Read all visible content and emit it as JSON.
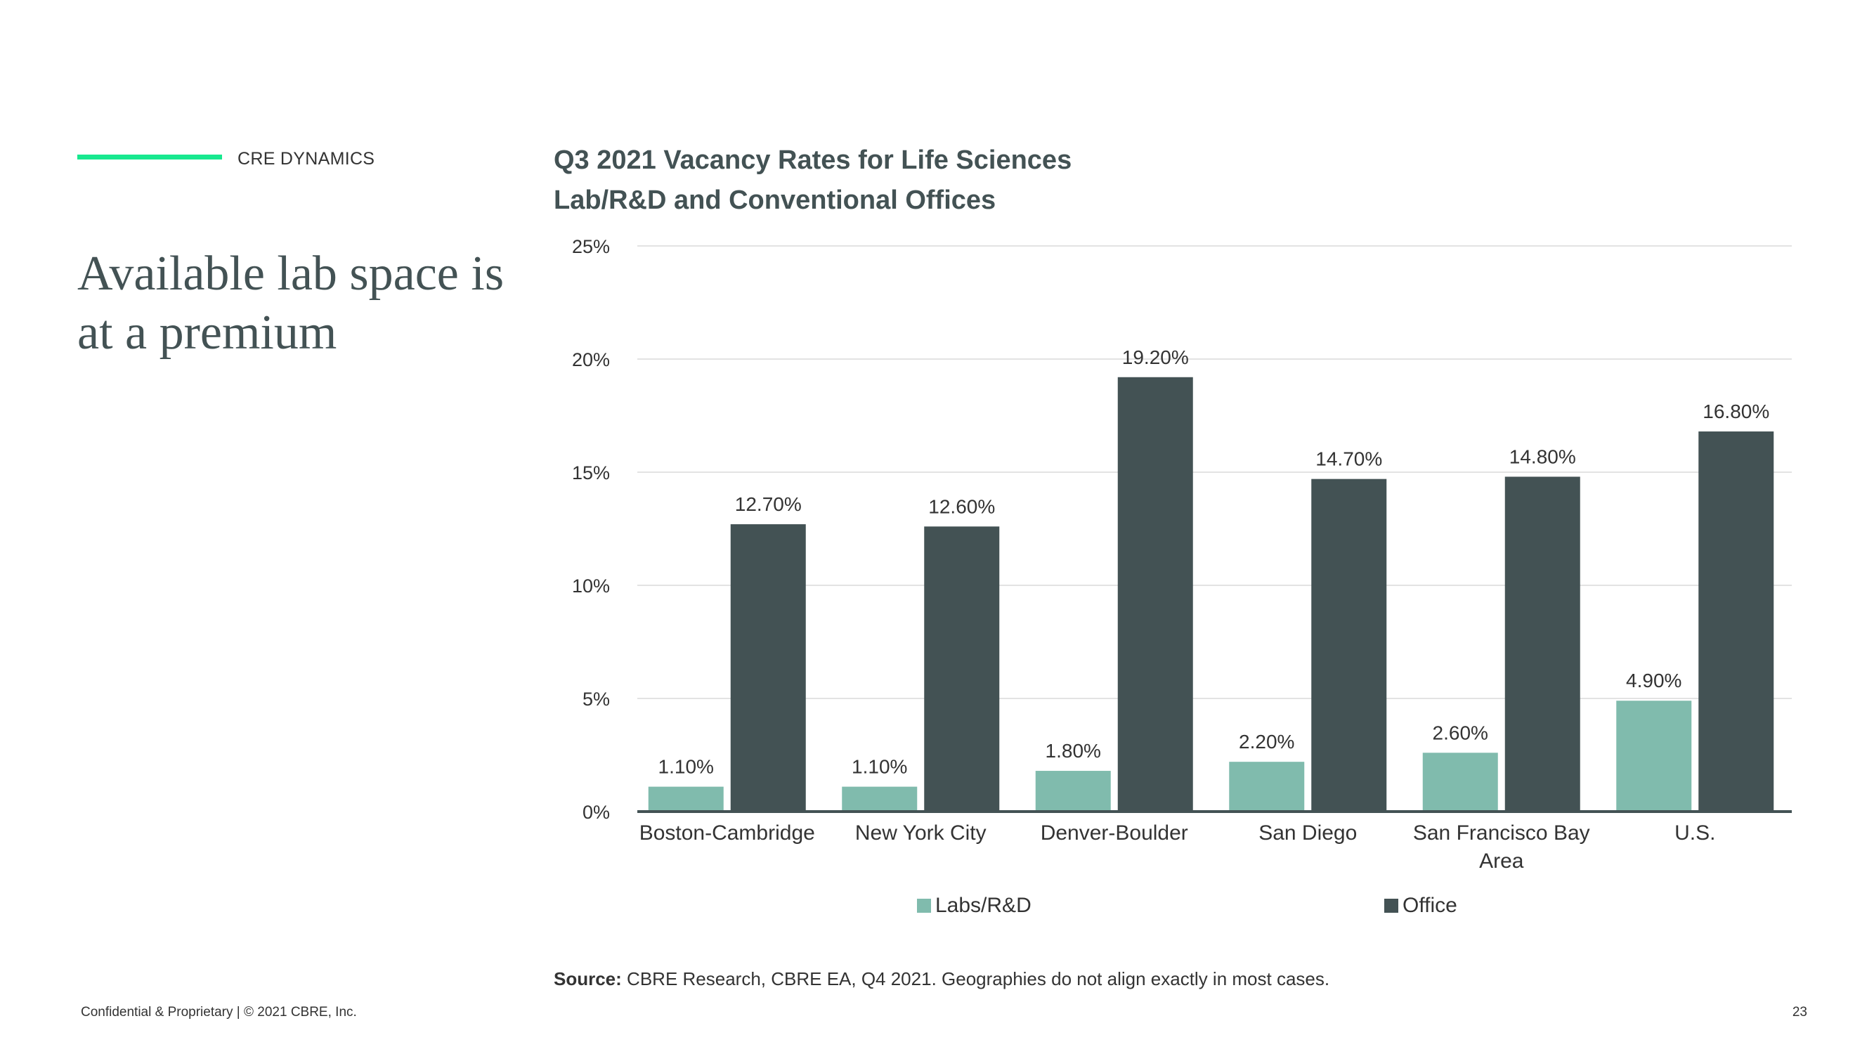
{
  "header": {
    "section_label": "CRE DYNAMICS",
    "title": "Available lab space is at a premium"
  },
  "colors": {
    "accent": "#17E88F",
    "labs": "#80BBAD",
    "office": "#435254",
    "grid": "#E3E3E3",
    "axis": "#435254"
  },
  "chart_data": {
    "type": "bar",
    "title": "Q3 2021 Vacancy Rates for Life Sciences",
    "subtitle": "Lab/R&D and Conventional Offices",
    "categories": [
      "Boston-Cambridge",
      "New York City",
      "Denver-Boulder",
      "San Diego",
      "San Francisco Bay Area",
      "U.S."
    ],
    "category_lines": [
      [
        "Boston-Cambridge"
      ],
      [
        "New York City"
      ],
      [
        "Denver-Boulder"
      ],
      [
        "San Diego"
      ],
      [
        "San Francisco Bay",
        "Area"
      ],
      [
        "U.S."
      ]
    ],
    "series": [
      {
        "name": "Labs/R&D",
        "values": [
          1.1,
          1.1,
          1.8,
          2.2,
          2.6,
          4.9
        ],
        "labels": [
          "1.10%",
          "1.10%",
          "1.80%",
          "2.20%",
          "2.60%",
          "4.90%"
        ]
      },
      {
        "name": "Office",
        "values": [
          12.7,
          12.6,
          19.2,
          14.7,
          14.8,
          16.8
        ],
        "labels": [
          "12.70%",
          "12.60%",
          "19.20%",
          "14.70%",
          "14.80%",
          "16.80%"
        ]
      }
    ],
    "y_ticks": [
      0,
      5,
      10,
      15,
      20,
      25
    ],
    "y_tick_labels": [
      "0%",
      "5%",
      "10%",
      "15%",
      "20%",
      "25%"
    ],
    "ylim": [
      0,
      25
    ],
    "xlabel": "",
    "ylabel": "",
    "grid": true,
    "legend_position": "bottom"
  },
  "source": {
    "label": "Source:",
    "text": "CBRE Research, CBRE EA, Q4 2021. Geographies do not align exactly in most cases."
  },
  "footer": {
    "left": "Confidential & Proprietary | © 2021 CBRE, Inc.",
    "page_number": "23"
  }
}
